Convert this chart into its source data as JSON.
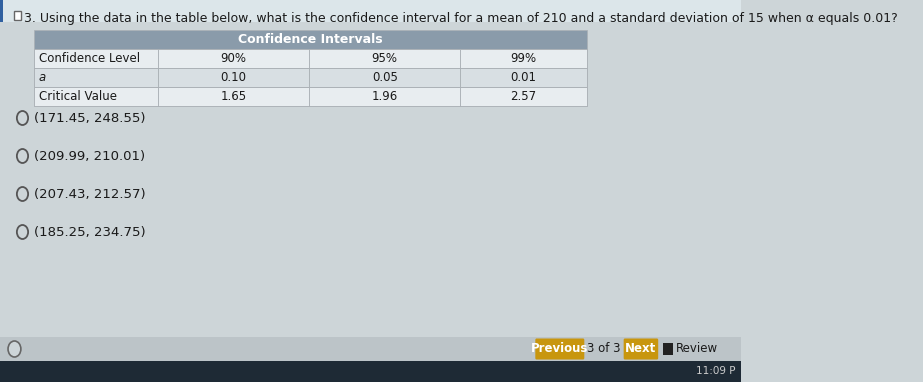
{
  "question_number": "3.",
  "question_text": "Using the data in the table below, what is the confidence interval for a mean of 210 and a standard deviation of 15 when α equals 0.01?",
  "table_header": "Confidence Intervals",
  "table_rows": [
    [
      "Confidence Level",
      "90%",
      "95%",
      "99%"
    ],
    [
      "a",
      "0.10",
      "0.05",
      "0.01"
    ],
    [
      "Critical Value",
      "1.65",
      "1.96",
      "2.57"
    ]
  ],
  "options": [
    "(171.45, 248.55)",
    "(209.99, 210.01)",
    "(207.43, 212.57)",
    "(185.25, 234.75)"
  ],
  "footer_left": "Previous",
  "footer_center": "3 of 3",
  "footer_next": "Next",
  "footer_right": "Review",
  "time": "11:09 P",
  "bg_color": "#cdd5d8",
  "top_bg_color": "#dce6ea",
  "table_header_bg": "#8a9baa",
  "table_row_bg1": "#e8edf0",
  "table_row_bg2": "#d8dfe3",
  "table_border": "#aab0b5",
  "text_color": "#1a1a1a",
  "button_color": "#c8960e",
  "question_font_size": 9.0,
  "option_font_size": 9.5,
  "table_font_size": 8.5
}
